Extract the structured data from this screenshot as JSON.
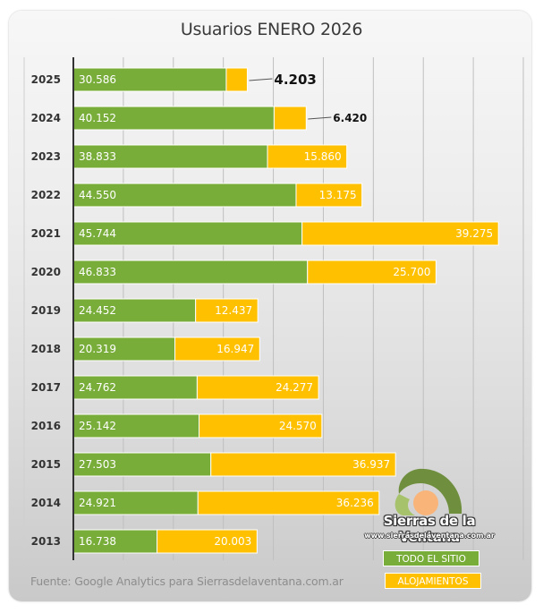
{
  "chart_data": {
    "type": "bar",
    "orientation": "horizontal",
    "stacked": true,
    "title": "Usuarios ENERO 2026",
    "xlabel": "",
    "ylabel": "",
    "xlim": [
      0,
      90000
    ],
    "grid": true,
    "categories": [
      "2025",
      "2024",
      "2023",
      "2022",
      "2021",
      "2020",
      "2019",
      "2018",
      "2017",
      "2016",
      "2015",
      "2014",
      "2013"
    ],
    "series": [
      {
        "name": "TODO EL SITIO",
        "color": "#78ad3a",
        "values": [
          30586,
          40152,
          38833,
          44550,
          45744,
          46833,
          24452,
          20319,
          24762,
          25142,
          27503,
          24921,
          16738
        ],
        "labels": [
          "30.586",
          "40.152",
          "38.833",
          "44.550",
          "45.744",
          "46.833",
          "24.452",
          "20.319",
          "24.762",
          "25.142",
          "27.503",
          "24.921",
          "16.738"
        ]
      },
      {
        "name": "ALOJAMIENTOS",
        "color": "#ffc000",
        "values": [
          4203,
          6420,
          15860,
          13175,
          39275,
          25700,
          12437,
          16947,
          24277,
          24570,
          36937,
          36236,
          20003
        ],
        "labels": [
          "4.203",
          "6.420",
          "15.860",
          "13.175",
          "39.275",
          "25.700",
          "12.437",
          "16.947",
          "24.277",
          "24.570",
          "36.937",
          "36.236",
          "20.003"
        ]
      }
    ],
    "legend": "bottom-right"
  },
  "source": "Fuente: Google Analytics para Sierrasdelaventana.com.ar",
  "logo": {
    "name": "Sierras de la Ventana",
    "url": "www.sierrasdelaventana.com.ar"
  }
}
